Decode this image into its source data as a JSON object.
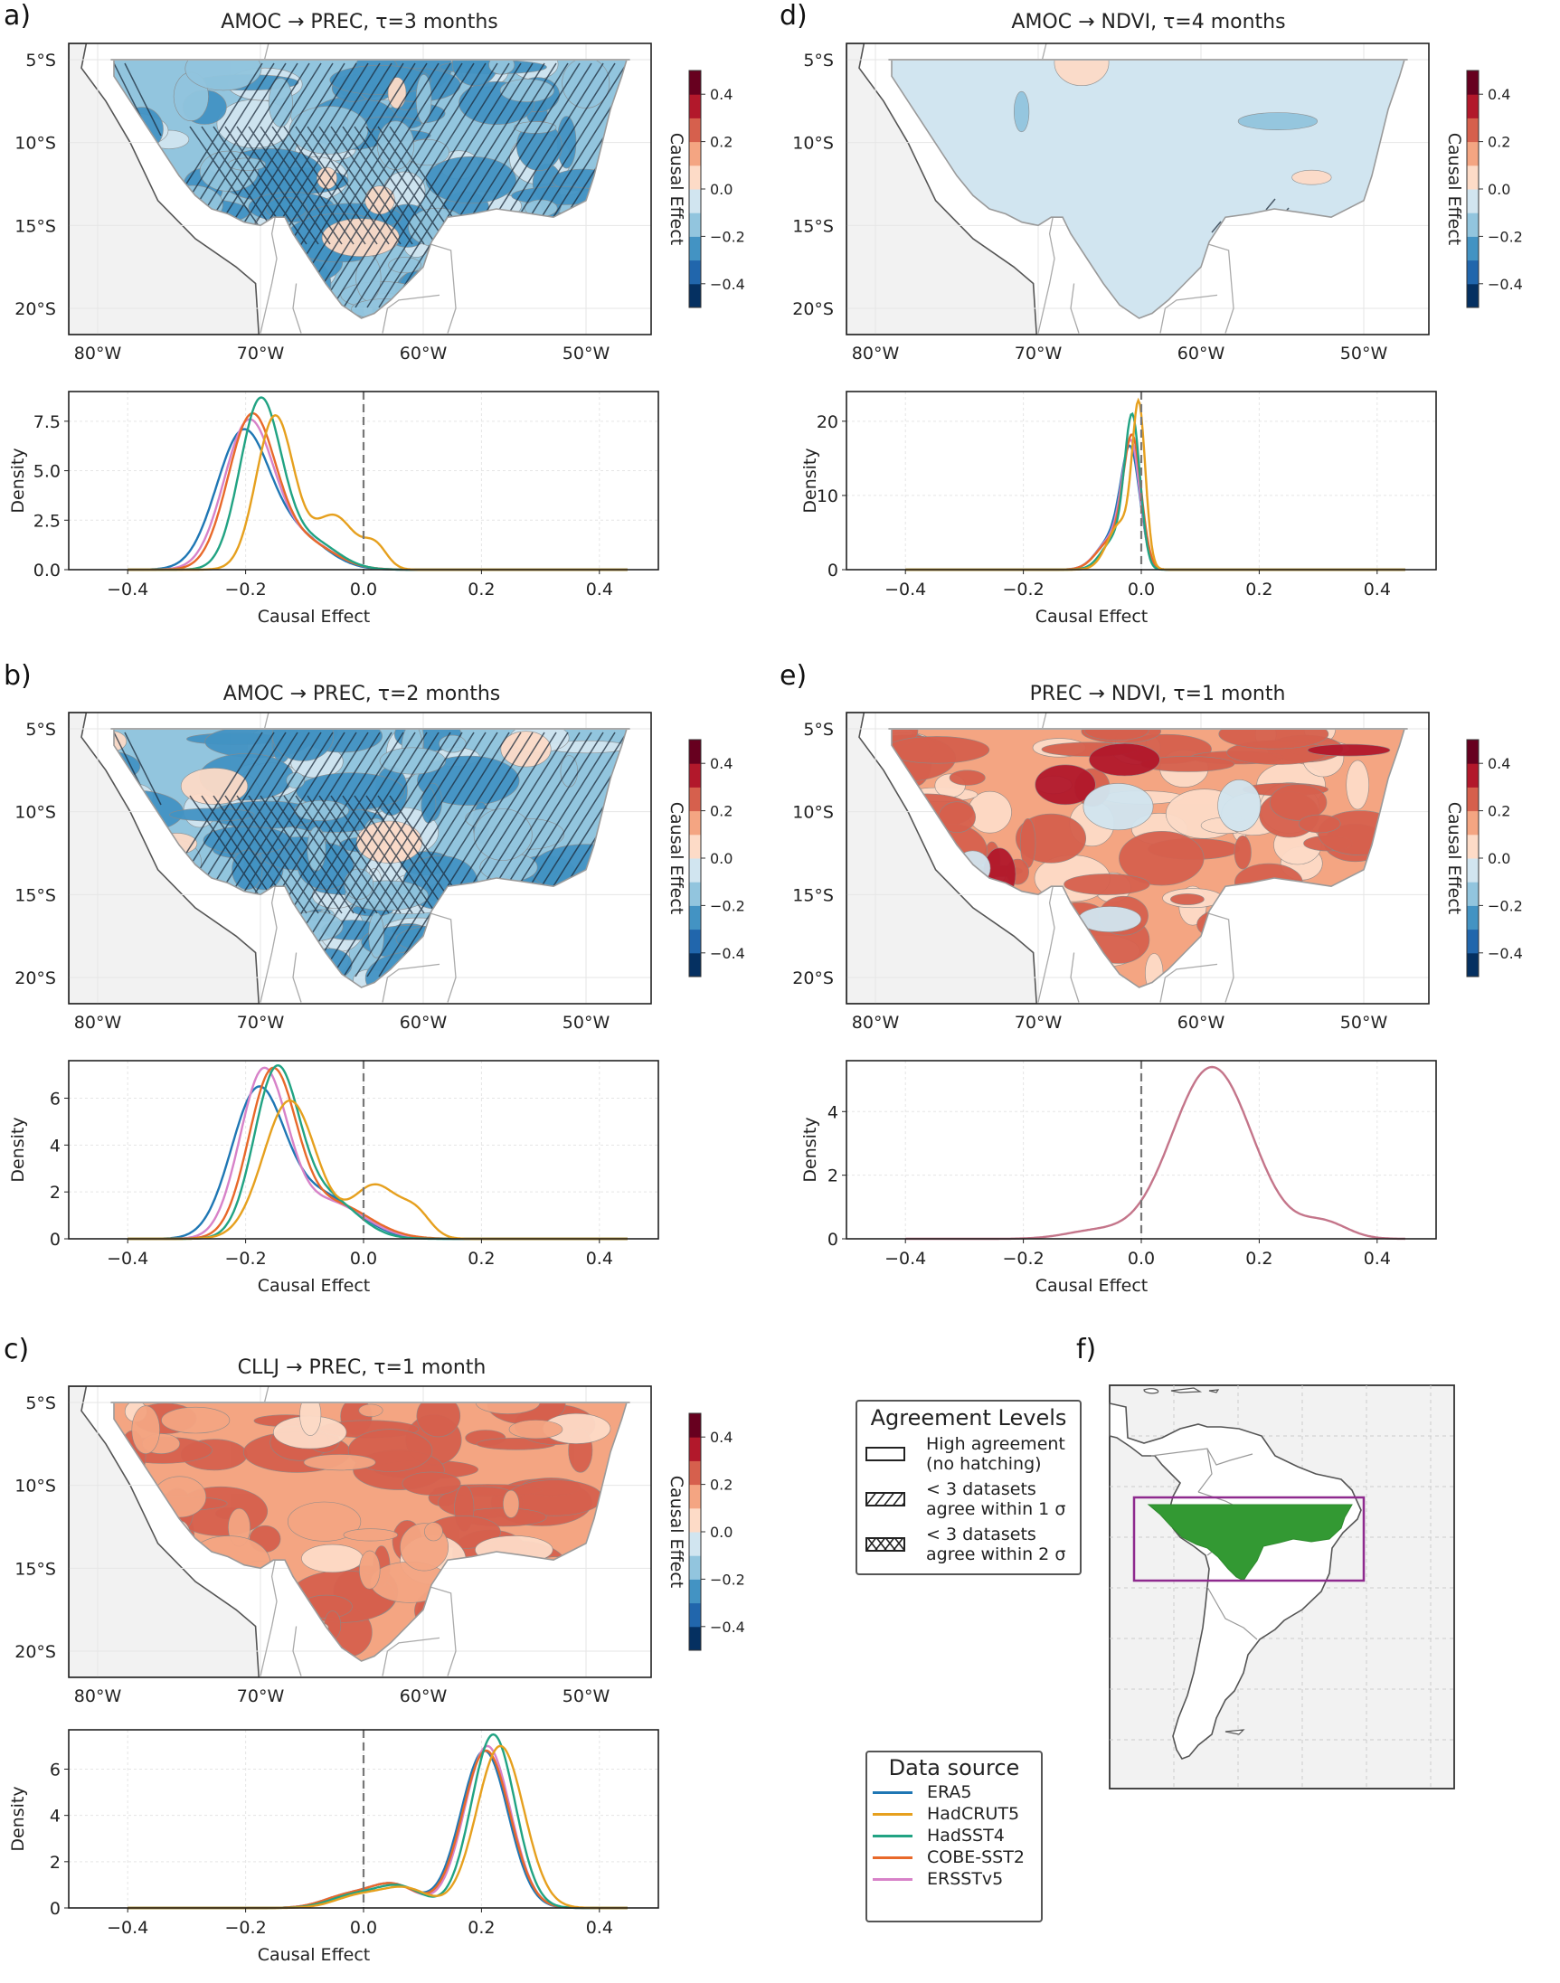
{
  "colormap": {
    "name": "RdBu_r",
    "levels": [
      -0.5,
      -0.4,
      -0.3,
      -0.2,
      -0.1,
      0.0,
      0.1,
      0.2,
      0.3,
      0.4,
      0.5
    ],
    "colors": [
      "#053061",
      "#2166ac",
      "#4393c3",
      "#92c5de",
      "#d1e5f0",
      "#fddbc7",
      "#f4a582",
      "#d6604d",
      "#b2182b",
      "#67001f"
    ],
    "ticks": [
      "0.4",
      "0.2",
      "0.0",
      "−0.2",
      "−0.4"
    ],
    "label": "Causal Effect"
  },
  "map_axes": {
    "lat_ticks": [
      "5°S",
      "10°S",
      "15°S",
      "20°S"
    ],
    "lon_ticks": [
      "80°W",
      "70°W",
      "60°W",
      "50°W"
    ]
  },
  "series_colors": {
    "ERA5": "#1f77b4",
    "HadCRUT5": "#e6a01e",
    "HadSST4": "#21a383",
    "COBE-SST2": "#e8692a",
    "ERSSTv5": "#d782c8"
  },
  "panels": {
    "a": {
      "label": "a)",
      "title": "AMOC → PREC, τ=3 months",
      "map_tone": "negative",
      "hatching": "strong"
    },
    "b": {
      "label": "b)",
      "title": "AMOC → PREC, τ=2 months",
      "map_tone": "negative",
      "hatching": "strong"
    },
    "c": {
      "label": "c)",
      "title": "CLLJ → PREC, τ=1 month",
      "map_tone": "positive",
      "hatching": "none"
    },
    "d": {
      "label": "d)",
      "title": "AMOC → NDVI, τ=4 months",
      "map_tone": "neutral",
      "hatching": "sparse"
    },
    "e": {
      "label": "e)",
      "title": "PREC → NDVI, τ=1 month",
      "map_tone": "positive_strong",
      "hatching": "none"
    },
    "f": {
      "label": "f)"
    }
  },
  "agreement_legend": {
    "title": "Agreement Levels",
    "items": [
      {
        "line1": "High agreement",
        "line2": "(no hatching)",
        "pattern": "none"
      },
      {
        "line1": "< 3 datasets",
        "line2": "agree within 1 σ",
        "pattern": "single"
      },
      {
        "line1": "< 3 datasets",
        "line2": "agree within 2 σ",
        "pattern": "cross"
      }
    ]
  },
  "data_source_legend": {
    "title": "Data source",
    "items": [
      "ERA5",
      "HadCRUT5",
      "HadSST4",
      "COBE-SST2",
      "ERSSTv5"
    ]
  },
  "chart_data": [
    {
      "panel": "a",
      "type": "line",
      "title": "AMOC → PREC, τ=3 months (density)",
      "xlabel": "Causal Effect",
      "ylabel": "Density",
      "xlim": [
        -0.5,
        0.5
      ],
      "ylim": [
        0,
        9.0
      ],
      "xticks": [
        "−0.4",
        "−0.2",
        "0.0",
        "0.2",
        "0.4"
      ],
      "xtick_values": [
        -0.4,
        -0.2,
        0,
        0.2,
        0.4
      ],
      "yticks": [
        "0.0",
        "2.5",
        "5.0",
        "7.5"
      ],
      "ytick_values": [
        0,
        2.5,
        5,
        7.5
      ],
      "vline": 0.0,
      "grid": true,
      "series": [
        {
          "name": "ERA5",
          "peak_x": -0.205,
          "peak_y": 7.1,
          "components": [
            [
              -0.205,
              0.045,
              0.8
            ],
            [
              -0.11,
              0.05,
              0.2
            ]
          ]
        },
        {
          "name": "ERSSTv5",
          "peak_x": -0.195,
          "peak_y": 7.6,
          "components": [
            [
              -0.195,
              0.042,
              0.82
            ],
            [
              -0.1,
              0.05,
              0.18
            ]
          ]
        },
        {
          "name": "COBE-SST2",
          "peak_x": -0.19,
          "peak_y": 7.9,
          "components": [
            [
              -0.19,
              0.04,
              0.82
            ],
            [
              -0.1,
              0.05,
              0.18
            ]
          ]
        },
        {
          "name": "HadSST4",
          "peak_x": -0.175,
          "peak_y": 8.7,
          "components": [
            [
              -0.175,
              0.035,
              0.82
            ],
            [
              -0.09,
              0.045,
              0.18
            ]
          ]
        },
        {
          "name": "HadCRUT5",
          "peak_x": -0.15,
          "peak_y": 7.8,
          "components": [
            [
              -0.15,
              0.032,
              0.68
            ],
            [
              -0.05,
              0.035,
              0.26
            ],
            [
              0.02,
              0.02,
              0.06
            ]
          ]
        }
      ]
    },
    {
      "panel": "b",
      "type": "line",
      "title": "AMOC → PREC, τ=2 months (density)",
      "xlabel": "Causal Effect",
      "ylabel": "Density",
      "xlim": [
        -0.5,
        0.5
      ],
      "ylim": [
        0,
        7.6
      ],
      "xticks": [
        "−0.4",
        "−0.2",
        "0.0",
        "0.2",
        "0.4"
      ],
      "xtick_values": [
        -0.4,
        -0.2,
        0,
        0.2,
        0.4
      ],
      "yticks": [
        "0",
        "2",
        "4",
        "6"
      ],
      "ytick_values": [
        0,
        2,
        4,
        6
      ],
      "vline": 0.0,
      "grid": true,
      "series": [
        {
          "name": "ERA5",
          "peak_x": -0.18,
          "peak_y": 6.5,
          "components": [
            [
              -0.18,
              0.045,
              0.72
            ],
            [
              -0.07,
              0.06,
              0.28
            ]
          ]
        },
        {
          "name": "ERSSTv5",
          "peak_x": -0.17,
          "peak_y": 7.3,
          "components": [
            [
              -0.17,
              0.04,
              0.75
            ],
            [
              -0.06,
              0.06,
              0.25
            ]
          ]
        },
        {
          "name": "COBE-SST2",
          "peak_x": -0.155,
          "peak_y": 7.3,
          "components": [
            [
              -0.155,
              0.04,
              0.76
            ],
            [
              -0.05,
              0.06,
              0.24
            ]
          ]
        },
        {
          "name": "HadSST4",
          "peak_x": -0.148,
          "peak_y": 7.4,
          "components": [
            [
              -0.148,
              0.038,
              0.76
            ],
            [
              -0.06,
              0.05,
              0.24
            ]
          ]
        },
        {
          "name": "HadCRUT5",
          "peak_x": -0.125,
          "peak_y": 5.9,
          "components": [
            [
              -0.125,
              0.045,
              0.7
            ],
            [
              0.02,
              0.04,
              0.24
            ],
            [
              0.09,
              0.025,
              0.06
            ]
          ]
        }
      ]
    },
    {
      "panel": "c",
      "type": "line",
      "title": "CLLJ → PREC, τ=1 month (density)",
      "xlabel": "Causal Effect",
      "ylabel": "Density",
      "xlim": [
        -0.5,
        0.5
      ],
      "ylim": [
        0,
        7.7
      ],
      "xticks": [
        "−0.4",
        "−0.2",
        "0.0",
        "0.2",
        "0.4"
      ],
      "xtick_values": [
        -0.4,
        -0.2,
        0,
        0.2,
        0.4
      ],
      "yticks": [
        "0",
        "2",
        "4",
        "6"
      ],
      "ytick_values": [
        0,
        2,
        4,
        6
      ],
      "vline": 0.0,
      "grid": true,
      "series": [
        {
          "name": "ERA5",
          "peak_x": 0.2,
          "peak_y": 6.8,
          "components": [
            [
              0.205,
              0.04,
              0.82
            ],
            [
              0.05,
              0.04,
              0.12
            ],
            [
              -0.03,
              0.04,
              0.06
            ]
          ]
        },
        {
          "name": "ERSSTv5",
          "peak_x": 0.21,
          "peak_y": 7.0,
          "components": [
            [
              0.21,
              0.039,
              0.82
            ],
            [
              0.05,
              0.04,
              0.12
            ],
            [
              -0.03,
              0.04,
              0.06
            ]
          ]
        },
        {
          "name": "COBE-SST2",
          "peak_x": 0.21,
          "peak_y": 6.8,
          "components": [
            [
              0.208,
              0.04,
              0.82
            ],
            [
              0.05,
              0.04,
              0.12
            ],
            [
              -0.03,
              0.04,
              0.06
            ]
          ]
        },
        {
          "name": "HadSST4",
          "peak_x": 0.22,
          "peak_y": 7.5,
          "components": [
            [
              0.22,
              0.037,
              0.83
            ],
            [
              0.06,
              0.04,
              0.11
            ],
            [
              -0.02,
              0.04,
              0.06
            ]
          ]
        },
        {
          "name": "HadCRUT5",
          "peak_x": 0.23,
          "peak_y": 7.0,
          "components": [
            [
              0.232,
              0.04,
              0.84
            ],
            [
              0.07,
              0.04,
              0.1
            ],
            [
              -0.01,
              0.04,
              0.06
            ]
          ]
        }
      ]
    },
    {
      "panel": "d",
      "type": "line",
      "title": "AMOC → NDVI, τ=4 months (density)",
      "xlabel": "Causal Effect",
      "ylabel": "Density",
      "xlim": [
        -0.5,
        0.5
      ],
      "ylim": [
        0,
        24
      ],
      "xticks": [
        "−0.4",
        "−0.2",
        "0.0",
        "0.2",
        "0.4"
      ],
      "xtick_values": [
        -0.4,
        -0.2,
        0,
        0.2,
        0.4
      ],
      "yticks": [
        "0",
        "10",
        "20"
      ],
      "ytick_values": [
        0,
        10,
        20
      ],
      "vline": 0.0,
      "grid": true,
      "series": [
        {
          "name": "ERA5",
          "peak_x": -0.018,
          "peak_y": 16.7,
          "components": [
            [
              -0.018,
              0.016,
              0.7
            ],
            [
              -0.05,
              0.025,
              0.3
            ]
          ]
        },
        {
          "name": "ERSSTv5",
          "peak_x": -0.017,
          "peak_y": 17.5,
          "components": [
            [
              -0.017,
              0.015,
              0.7
            ],
            [
              -0.05,
              0.025,
              0.3
            ]
          ]
        },
        {
          "name": "COBE-SST2",
          "peak_x": -0.015,
          "peak_y": 18.2,
          "components": [
            [
              -0.015,
              0.015,
              0.72
            ],
            [
              -0.05,
              0.025,
              0.28
            ]
          ]
        },
        {
          "name": "HadSST4",
          "peak_x": -0.015,
          "peak_y": 21.0,
          "components": [
            [
              -0.015,
              0.013,
              0.74
            ],
            [
              -0.045,
              0.022,
              0.26
            ]
          ]
        },
        {
          "name": "HadCRUT5",
          "peak_x": -0.003,
          "peak_y": 22.8,
          "components": [
            [
              -0.004,
              0.011,
              0.62
            ],
            [
              -0.035,
              0.022,
              0.38
            ]
          ]
        }
      ]
    },
    {
      "panel": "e",
      "type": "line",
      "title": "PREC → NDVI, τ=1 month (density)",
      "xlabel": "Causal Effect",
      "ylabel": "Density",
      "xlim": [
        -0.5,
        0.5
      ],
      "ylim": [
        0,
        5.6
      ],
      "xticks": [
        "−0.4",
        "−0.2",
        "0.0",
        "0.2",
        "0.4"
      ],
      "xtick_values": [
        -0.4,
        -0.2,
        0,
        0.2,
        0.4
      ],
      "yticks": [
        "0",
        "2",
        "4"
      ],
      "ytick_values": [
        0,
        2,
        4
      ],
      "vline": 0.0,
      "grid": true,
      "series": [
        {
          "name": "PREC→NDVI",
          "color": "#c4758a",
          "peak_x": 0.12,
          "peak_y": 5.4,
          "components": [
            [
              0.12,
              0.068,
              0.92
            ],
            [
              0.31,
              0.04,
              0.05
            ],
            [
              -0.08,
              0.05,
              0.03
            ]
          ]
        }
      ]
    }
  ]
}
